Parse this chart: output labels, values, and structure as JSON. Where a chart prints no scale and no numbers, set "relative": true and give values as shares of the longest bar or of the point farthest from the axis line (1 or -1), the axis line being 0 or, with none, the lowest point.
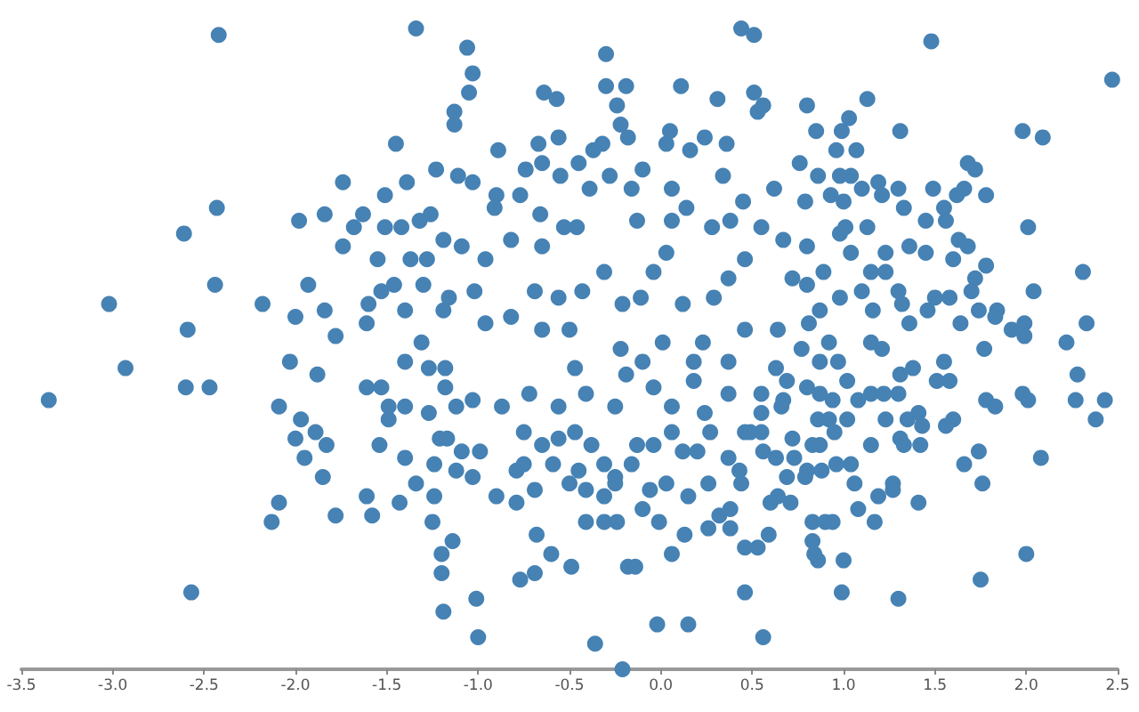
{
  "chart_data": {
    "type": "scatter",
    "relative": true,
    "color": "#4682b4",
    "marker": "circle",
    "xlim": [
      -3.5,
      2.5
    ],
    "xticks": [
      {
        "value": -3.5,
        "label": "-3.5"
      },
      {
        "value": -3,
        "label": "-3.0"
      },
      {
        "value": -2.5,
        "label": "-2.5"
      },
      {
        "value": -2,
        "label": "-2.0"
      },
      {
        "value": -1.5,
        "label": "-1.5"
      },
      {
        "value": -1,
        "label": "-1.0"
      },
      {
        "value": -0.5,
        "label": "-0.5"
      },
      {
        "value": 0,
        "label": "0.0"
      },
      {
        "value": 0.5,
        "label": "0.5"
      },
      {
        "value": 1,
        "label": "1.0"
      },
      {
        "value": 1.5,
        "label": "1.5"
      },
      {
        "value": 2,
        "label": "2.0"
      },
      {
        "value": 2.5,
        "label": "2.5"
      }
    ],
    "x": [
      -2.42,
      -2.43,
      -2.61,
      -1.74,
      -1.84,
      -1.98,
      -1.63,
      -1.68,
      -1.74,
      -2.44,
      -1.93,
      -3.02,
      -2.18,
      -2.59,
      -2.0,
      -1.84,
      -1.78,
      -1.6,
      -1.53,
      -1.61,
      -1.51,
      -1.51,
      -1.55,
      -3.35,
      -2.93,
      -2.6,
      -2.47,
      -2.57,
      -2.09,
      -1.97,
      -2.0,
      -1.95,
      -1.89,
      -1.83,
      -1.85,
      -2.09,
      -2.13,
      -1.78,
      -1.61,
      -1.58,
      -1.54,
      -1.61,
      -1.53,
      -1.88,
      -2.03,
      -1.49,
      -1.34,
      -1.06,
      -1.03,
      -1.05,
      -1.13,
      -1.13,
      -1.45,
      -1.23,
      -1.11,
      -1.03,
      -1.39,
      -0.64,
      -0.57,
      -0.3,
      -0.3,
      -0.19,
      -0.24,
      -0.22,
      -0.18,
      0.11,
      0.31,
      0.44,
      0.05,
      0.03,
      0.16,
      0.24,
      0.36,
      -0.89,
      -0.67,
      -0.56,
      -0.32,
      -0.37,
      -0.45,
      -0.74,
      -0.65,
      -0.55,
      -0.9,
      -0.91,
      -0.77,
      -0.39,
      -0.28,
      -0.1,
      -0.16,
      0.06,
      0.34,
      0.45,
      -1.26,
      -1.32,
      -1.42,
      -1.19,
      -1.09,
      -0.82,
      -0.96,
      -0.65,
      -0.46,
      -0.53,
      -0.66,
      -0.13,
      0.06,
      0.14,
      0.28,
      0.38,
      -1.37,
      -1.28,
      -1.46,
      -1.16,
      -1.3,
      -1.02,
      -1.4,
      -1.19,
      -1.31,
      -0.96,
      -0.82,
      -0.69,
      -0.56,
      -0.43,
      -0.65,
      -0.5,
      -0.31,
      -0.21,
      -0.11,
      -0.04,
      0.03,
      0.12,
      0.29,
      0.37,
      0.46,
      0.23,
      0.46,
      0.01,
      -0.22,
      0.51,
      1.48,
      0.51,
      0.53,
      0.56,
      0.8,
      1.13,
      0.85,
      0.99,
      1.03,
      0.96,
      1.07,
      1.31,
      1.98,
      2.09,
      2.47,
      0.76,
      0.86,
      0.98,
      1.04,
      1.19,
      1.1,
      1.0,
      0.93,
      0.79,
      0.62,
      1.21,
      1.3,
      1.33,
      1.49,
      1.55,
      1.62,
      1.66,
      1.68,
      1.72,
      1.78,
      1.45,
      1.56,
      2.01,
      1.63,
      1.68,
      1.6,
      1.78,
      1.72,
      2.31,
      2.04,
      1.7,
      1.58,
      1.64,
      1.74,
      1.84,
      1.83,
      1.99,
      2.33,
      2.22,
      1.92,
      1.99,
      1.77,
      1.36,
      1.45,
      1.23,
      1.15,
      1.23,
      1.3,
      1.32,
      1.36,
      1.46,
      1.5,
      1.1,
      1.16,
      0.98,
      1.01,
      1.04,
      1.13,
      0.8,
      0.67,
      0.55,
      0.89,
      0.8,
      0.72,
      0.98,
      0.87,
      0.64,
      0.81,
      0.92,
      1.15,
      1.21,
      0.77,
      -0.21,
      -0.36,
      -1.0,
      -1.01,
      -1.19,
      -1.2,
      -1.2,
      -1.14,
      -1.25,
      -1.43,
      -1.34,
      -1.24,
      -0.77,
      -0.69,
      -0.6,
      -0.49,
      -0.68,
      -0.18,
      -0.14,
      -0.41,
      -0.31,
      -0.24,
      -0.02,
      0.15,
      0.06,
      0.13,
      -0.01,
      -0.1,
      -0.06,
      0.03,
      0.15,
      0.26,
      0.32,
      0.38,
      0.46,
      0.46,
      0.38,
      0.26,
      -0.69,
      -0.79,
      -0.9,
      -1.03,
      -1.12,
      -0.99,
      -1.09,
      -1.24,
      -1.4,
      -1.21,
      -1.17,
      -1.27,
      -1.4,
      -1.12,
      -1.03,
      -1.18,
      -1.18,
      -1.4,
      -1.27,
      -1.49,
      -0.41,
      -0.31,
      -0.25,
      -0.5,
      -0.59,
      -0.45,
      -0.79,
      -0.75,
      -0.65,
      -0.56,
      -0.75,
      -0.47,
      -0.38,
      -0.31,
      -0.25,
      -0.16,
      -0.13,
      -0.04,
      0.06,
      0.12,
      0.2,
      0.27,
      0.37,
      0.43,
      0.44,
      -0.87,
      -0.72,
      -0.56,
      -0.41,
      -0.25,
      -0.19,
      -0.04,
      0.06,
      0.18,
      0.24,
      0.37,
      0.46,
      -0.47,
      -0.1,
      0.18,
      0.37,
      0.56,
      0.99,
      1.3,
      1.75,
      2.0,
      1.0,
      0.86,
      0.83,
      0.84,
      0.53,
      0.59,
      0.83,
      0.9,
      0.94,
      1.08,
      1.17,
      1.41,
      1.19,
      1.27,
      1.27,
      1.06,
      0.79,
      0.71,
      0.64,
      0.6,
      0.69,
      1.76,
      1.66,
      1.74,
      2.08,
      1.56,
      1.6,
      1.42,
      1.43,
      1.31,
      1.33,
      1.15,
      1.04,
      1.02,
      1.23,
      1.35,
      1.41,
      1.78,
      1.83,
      1.98,
      2.01,
      2.28,
      2.27,
      2.38,
      2.43,
      1.58,
      1.51,
      1.55,
      1.38,
      1.31,
      1.22,
      1.3,
      1.15,
      1.08,
      1.02,
      0.97,
      0.87,
      0.8,
      0.87,
      0.94,
      0.86,
      0.92,
      0.95,
      0.83,
      0.87,
      0.73,
      0.8,
      0.88,
      0.96,
      0.63,
      0.56,
      0.55,
      0.72,
      0.66,
      0.67,
      0.55,
      0.55,
      0.69,
      0.63,
      0.49
    ],
    "values": [
      0.99,
      0.72,
      0.68,
      0.76,
      0.71,
      0.7,
      0.71,
      0.69,
      0.66,
      0.6,
      0.6,
      0.57,
      0.57,
      0.53,
      0.55,
      0.56,
      0.52,
      0.57,
      0.59,
      0.54,
      0.74,
      0.69,
      0.64,
      0.42,
      0.47,
      0.44,
      0.44,
      0.12,
      0.41,
      0.39,
      0.36,
      0.33,
      0.37,
      0.35,
      0.3,
      0.26,
      0.23,
      0.24,
      0.27,
      0.24,
      0.35,
      0.44,
      0.44,
      0.46,
      0.48,
      0.39,
      1.0,
      0.97,
      0.93,
      0.9,
      0.87,
      0.85,
      0.82,
      0.78,
      0.77,
      0.76,
      0.76,
      0.9,
      0.89,
      0.96,
      0.91,
      0.91,
      0.88,
      0.85,
      0.83,
      0.91,
      0.89,
      1.0,
      0.84,
      0.82,
      0.81,
      0.83,
      0.82,
      0.81,
      0.82,
      0.83,
      0.82,
      0.81,
      0.79,
      0.78,
      0.79,
      0.77,
      0.74,
      0.72,
      0.74,
      0.75,
      0.77,
      0.78,
      0.75,
      0.75,
      0.77,
      0.73,
      0.71,
      0.7,
      0.69,
      0.67,
      0.66,
      0.67,
      0.64,
      0.66,
      0.69,
      0.69,
      0.71,
      0.7,
      0.7,
      0.72,
      0.69,
      0.7,
      0.64,
      0.64,
      0.6,
      0.58,
      0.6,
      0.59,
      0.56,
      0.56,
      0.51,
      0.54,
      0.55,
      0.59,
      0.58,
      0.59,
      0.53,
      0.53,
      0.62,
      0.57,
      0.58,
      0.62,
      0.65,
      0.57,
      0.58,
      0.61,
      0.64,
      0.51,
      0.53,
      0.51,
      0.5,
      0.99,
      0.98,
      0.9,
      0.87,
      0.88,
      0.88,
      0.89,
      0.84,
      0.84,
      0.86,
      0.81,
      0.81,
      0.84,
      0.84,
      0.83,
      0.92,
      0.79,
      0.77,
      0.77,
      0.77,
      0.76,
      0.75,
      0.73,
      0.74,
      0.73,
      0.75,
      0.74,
      0.75,
      0.72,
      0.75,
      0.72,
      0.74,
      0.75,
      0.79,
      0.78,
      0.74,
      0.7,
      0.7,
      0.69,
      0.67,
      0.66,
      0.64,
      0.63,
      0.61,
      0.62,
      0.59,
      0.59,
      0.58,
      0.54,
      0.56,
      0.56,
      0.55,
      0.54,
      0.54,
      0.51,
      0.53,
      0.52,
      0.5,
      0.66,
      0.65,
      0.65,
      0.62,
      0.62,
      0.59,
      0.57,
      0.54,
      0.56,
      0.58,
      0.59,
      0.56,
      0.68,
      0.69,
      0.65,
      0.69,
      0.66,
      0.67,
      0.69,
      0.62,
      0.6,
      0.61,
      0.58,
      0.56,
      0.53,
      0.54,
      0.51,
      0.51,
      0.5,
      0.5,
      0.0,
      0.04,
      0.05,
      0.11,
      0.09,
      0.15,
      0.18,
      0.2,
      0.23,
      0.26,
      0.29,
      0.27,
      0.14,
      0.15,
      0.18,
      0.16,
      0.21,
      0.16,
      0.16,
      0.23,
      0.23,
      0.23,
      0.07,
      0.07,
      0.18,
      0.21,
      0.23,
      0.25,
      0.28,
      0.29,
      0.27,
      0.22,
      0.24,
      0.22,
      0.19,
      0.12,
      0.25,
      0.29,
      0.28,
      0.26,
      0.27,
      0.3,
      0.31,
      0.34,
      0.34,
      0.32,
      0.33,
      0.36,
      0.36,
      0.4,
      0.41,
      0.41,
      0.42,
      0.44,
      0.47,
      0.48,
      0.47,
      0.41,
      0.28,
      0.27,
      0.29,
      0.29,
      0.32,
      0.31,
      0.31,
      0.32,
      0.35,
      0.36,
      0.37,
      0.37,
      0.35,
      0.32,
      0.3,
      0.32,
      0.35,
      0.35,
      0.37,
      0.34,
      0.34,
      0.37,
      0.33,
      0.31,
      0.29,
      0.41,
      0.43,
      0.41,
      0.43,
      0.41,
      0.46,
      0.44,
      0.41,
      0.45,
      0.4,
      0.43,
      0.37,
      0.47,
      0.48,
      0.48,
      0.48,
      0.05,
      0.12,
      0.11,
      0.14,
      0.18,
      0.17,
      0.17,
      0.2,
      0.18,
      0.19,
      0.21,
      0.23,
      0.23,
      0.23,
      0.25,
      0.23,
      0.26,
      0.27,
      0.29,
      0.28,
      0.29,
      0.3,
      0.26,
      0.27,
      0.26,
      0.3,
      0.29,
      0.32,
      0.34,
      0.33,
      0.38,
      0.39,
      0.35,
      0.38,
      0.36,
      0.35,
      0.35,
      0.32,
      0.39,
      0.39,
      0.39,
      0.4,
      0.42,
      0.41,
      0.43,
      0.42,
      0.46,
      0.42,
      0.39,
      0.42,
      0.45,
      0.45,
      0.48,
      0.47,
      0.46,
      0.43,
      0.43,
      0.43,
      0.42,
      0.45,
      0.48,
      0.48,
      0.44,
      0.43,
      0.42,
      0.39,
      0.39,
      0.37,
      0.35,
      0.35,
      0.33,
      0.31,
      0.31,
      0.32,
      0.33,
      0.34,
      0.37,
      0.36,
      0.41,
      0.42,
      0.43,
      0.4,
      0.45,
      0.47,
      0.37
    ]
  }
}
